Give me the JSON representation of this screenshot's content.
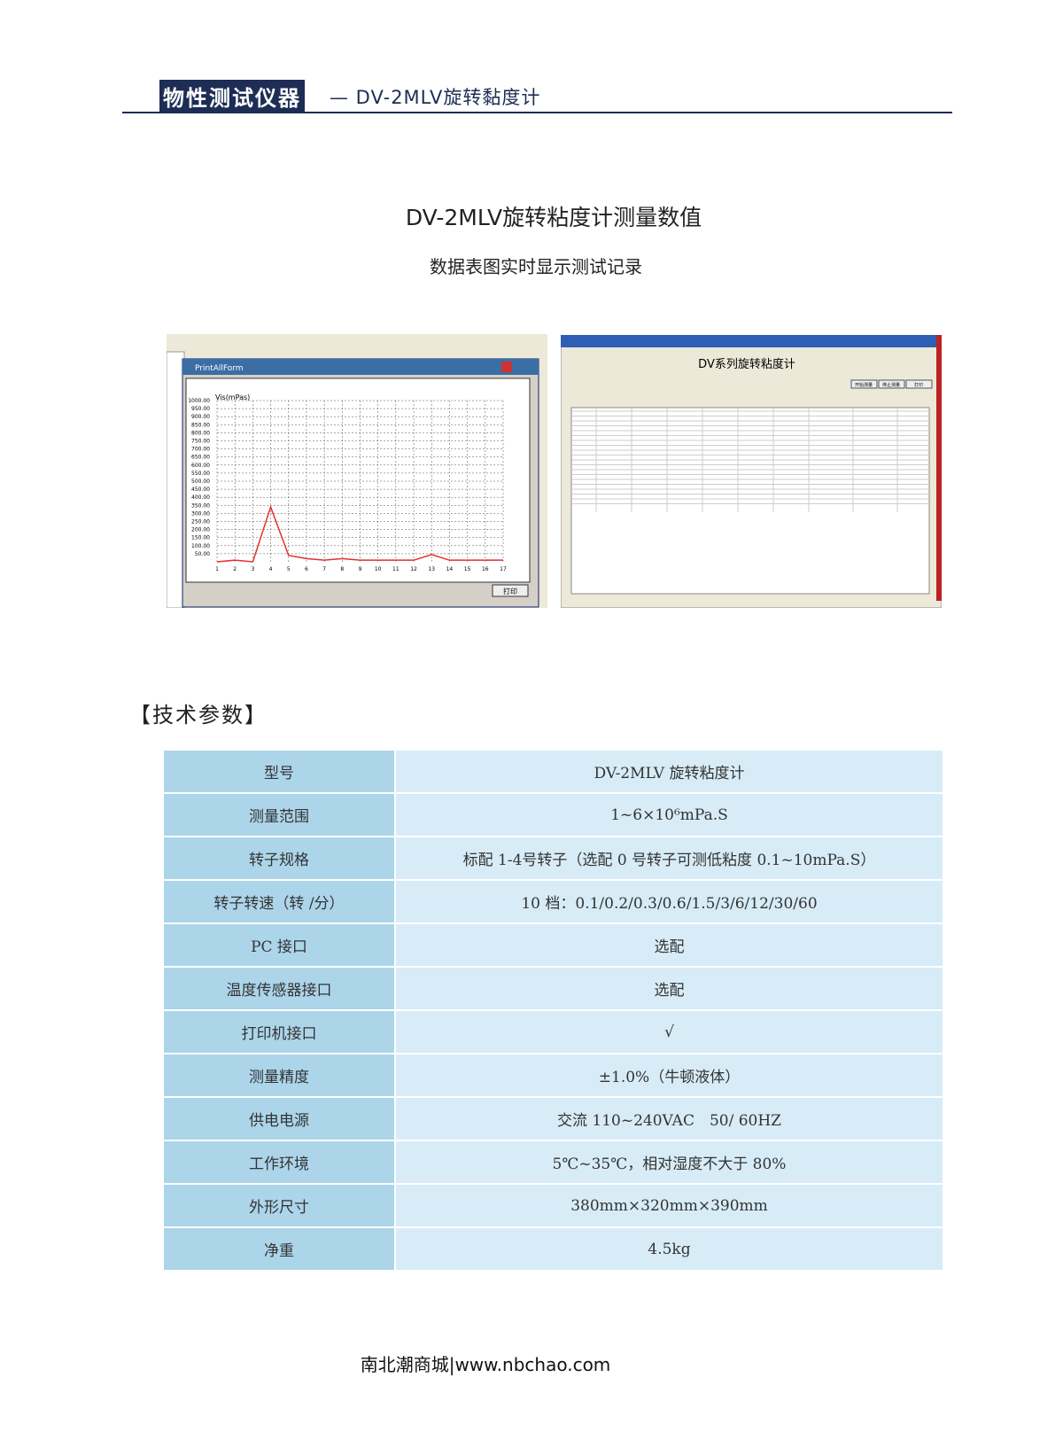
{
  "header": {
    "badge": "物性测试仪器",
    "title": "— DV-2MLV旋转黏度计"
  },
  "title": "DV-2MLV旋转粘度计测量数值",
  "subtitle": "数据表图实时显示测试记录",
  "screenshot_left": {
    "window_title": "PrintAllForm",
    "button": "打印",
    "chart_data": {
      "type": "line",
      "y_label": "Vis(mPas)",
      "categories": [
        "1",
        "2",
        "3",
        "4",
        "5",
        "6",
        "7",
        "8",
        "9",
        "10",
        "11",
        "12",
        "13",
        "14",
        "15",
        "16",
        "17"
      ],
      "values": [
        0,
        10,
        0,
        340,
        40,
        20,
        10,
        20,
        10,
        10,
        10,
        10,
        45,
        10,
        10,
        10,
        10
      ],
      "color": "#e03030",
      "ylim": [
        0,
        1000
      ],
      "yticks": [
        {
          "value": 50,
          "label": "50.00"
        },
        {
          "value": 100,
          "label": "100.00"
        },
        {
          "value": 150,
          "label": "150.00"
        },
        {
          "value": 200,
          "label": "200.00"
        },
        {
          "value": 250,
          "label": "250.00"
        },
        {
          "value": 300,
          "label": "300.00"
        },
        {
          "value": 350,
          "label": "350.00"
        },
        {
          "value": 400,
          "label": "400.00"
        },
        {
          "value": 450,
          "label": "450.00"
        },
        {
          "value": 500,
          "label": "500.00"
        },
        {
          "value": 550,
          "label": "550.00"
        },
        {
          "value": 600,
          "label": "600.00"
        },
        {
          "value": 650,
          "label": "650.00"
        },
        {
          "value": 700,
          "label": "700.00"
        },
        {
          "value": 750,
          "label": "750.00"
        },
        {
          "value": 800,
          "label": "800.00"
        },
        {
          "value": 850,
          "label": "850.00"
        },
        {
          "value": 900,
          "label": "900.00"
        },
        {
          "value": 950,
          "label": "950.00"
        },
        {
          "value": 1000,
          "label": "1000.00"
        }
      ],
      "grid": true
    }
  },
  "screenshot_right": {
    "app_title": "DV系列旋转粘度计",
    "buttons": [
      "开始测量",
      "停止测量",
      "打印"
    ]
  },
  "section_title": "【技术参数】",
  "table": {
    "rows": [
      [
        "型号",
        "DV-2MLV 旋转粘度计"
      ],
      [
        "测量范围",
        "1~6×10⁶mPa.S"
      ],
      [
        "转子规格",
        "标配 1-4号转子（选配 0 号转子可测低粘度 0.1~10mPa.S）"
      ],
      [
        "转子转速（转 /分）",
        "10 档：0.1/0.2/0.3/0.6/1.5/3/6/12/30/60"
      ],
      [
        "PC 接口",
        "选配"
      ],
      [
        "温度传感器接口",
        "选配"
      ],
      [
        "打印机接口",
        "√"
      ],
      [
        "测量精度",
        "±1.0%（牛顿液体）"
      ],
      [
        "供电电源",
        "交流 110~240VAC　50/ 60HZ"
      ],
      [
        "工作环境",
        "5℃~35℃，相对湿度不大于 80%"
      ],
      [
        "外形尺寸",
        "380mm×320mm×390mm"
      ],
      [
        "净重",
        "4.5kg"
      ]
    ]
  },
  "footer": "南北潮商城|www.nbchao.com"
}
